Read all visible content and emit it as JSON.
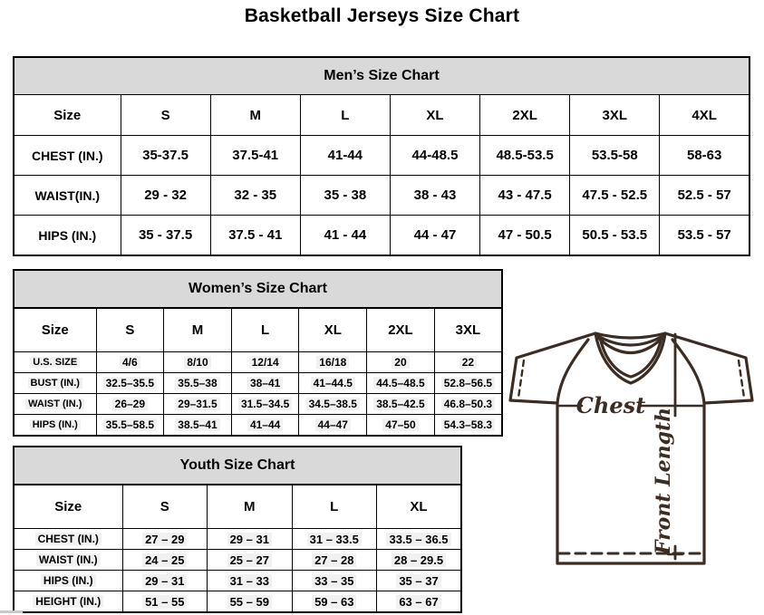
{
  "title": "Basketball Jerseys Size Chart",
  "tables": [
    {
      "id": "mens",
      "header": "Men’s Size Chart",
      "size_label": "Size",
      "columns": [
        "S",
        "M",
        "L",
        "XL",
        "2XL",
        "3XL",
        "4XL"
      ],
      "rows": [
        {
          "label": "CHEST (IN.)",
          "values": [
            "35-37.5",
            "37.5-41",
            "41-44",
            "44-48.5",
            "48.5-53.5",
            "53.5-58",
            "58-63"
          ]
        },
        {
          "label": "WAIST(IN.)",
          "values": [
            "29 - 32",
            "32 - 35",
            "35 - 38",
            "38 - 43",
            "43 - 47.5",
            "47.5 - 52.5",
            "52.5 - 57"
          ]
        },
        {
          "label": "HIPS (IN.)",
          "values": [
            "35 - 37.5",
            "37.5 - 41",
            "41 - 44",
            "44 - 47",
            "47 - 50.5",
            "50.5 - 53.5",
            "53.5 - 57"
          ]
        }
      ]
    },
    {
      "id": "womens",
      "header": "Women’s Size Chart",
      "size_label": "Size",
      "columns": [
        "S",
        "M",
        "L",
        "XL",
        "2XL",
        "3XL"
      ],
      "rows": [
        {
          "label": "U.S. SIZE",
          "values": [
            "4/6",
            "8/10",
            "12/14",
            "16/18",
            "20",
            "22"
          ]
        },
        {
          "label": "BUST (IN.)",
          "values": [
            "32.5–35.5",
            "35.5–38",
            "38–41",
            "41–44.5",
            "44.5–48.5",
            "52.8–56.5"
          ]
        },
        {
          "label": "WAIST (IN.)",
          "values": [
            "26–29",
            "29–31.5",
            "31.5–34.5",
            "34.5–38.5",
            "38.5–42.5",
            "46.8–50.3"
          ]
        },
        {
          "label": "HIPS (IN.)",
          "values": [
            "35.5–58.5",
            "38.5–41",
            "41–44",
            "44–47",
            "47–50",
            "54.3–58.3"
          ]
        }
      ]
    },
    {
      "id": "youth",
      "header": "Youth Size Chart",
      "size_label": "Size",
      "columns": [
        "S",
        "M",
        "L",
        "XL"
      ],
      "rows": [
        {
          "label": "CHEST (IN.)",
          "values": [
            "27 – 29",
            "29 – 31",
            "31 – 33.5",
            "33.5 – 36.5"
          ]
        },
        {
          "label": "WAIST (IN.)",
          "values": [
            "24 – 25",
            "25 – 27",
            "27 – 28",
            "28 – 29.5"
          ]
        },
        {
          "label": "HIPS (IN.)",
          "values": [
            "29 – 31",
            "31 – 33",
            "33 – 35",
            "35 – 37"
          ]
        },
        {
          "label": "HEIGHT (IN.)",
          "values": [
            "51 – 55",
            "55 – 59",
            "59 – 63",
            "63 – 67"
          ]
        }
      ]
    }
  ],
  "diagram": {
    "chest_label": "Chest",
    "front_length_label": "Front Length"
  },
  "colors": {
    "page_bg": "#ffffff",
    "table_header_bg": "#d9d9d9",
    "table_border": "#000000",
    "value_highlight": "#f1f1f1",
    "jersey_line": "#3b2c24"
  }
}
